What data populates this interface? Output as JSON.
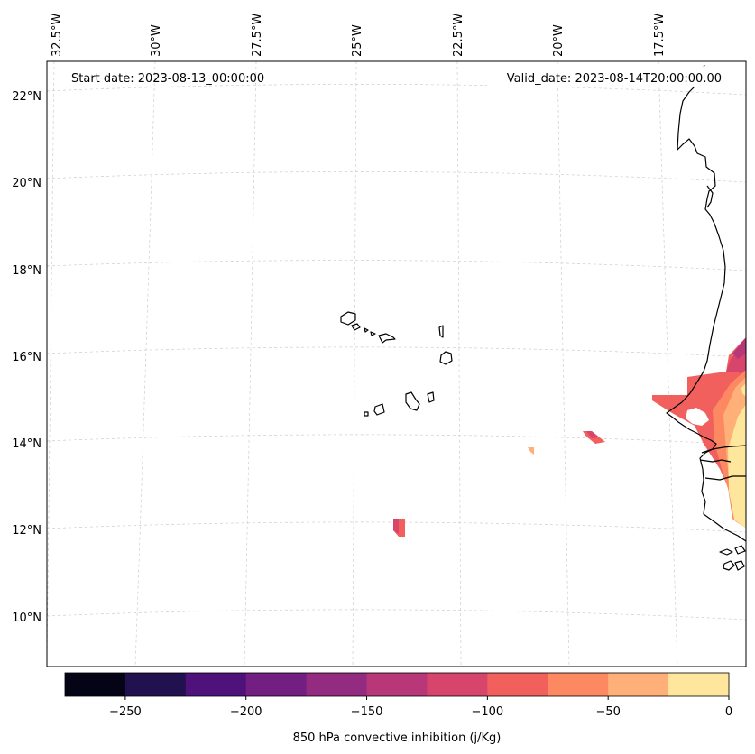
{
  "map": {
    "start_date": "Start date: 2023-08-13_00:00:00",
    "valid_date": "Valid_date: 2023-08-14T20:00:00.00",
    "lon_labels": [
      "32.5°W",
      "30°W",
      "27.5°W",
      "25°W",
      "22.5°W",
      "20°W",
      "17.5°W"
    ],
    "lat_labels": [
      "22°N",
      "20°N",
      "18°N",
      "16°N",
      "14°N",
      "12°N",
      "10°N"
    ],
    "extent": {
      "lon_min": -33.0,
      "lon_max": -16.2,
      "lat_min": 8.9,
      "lat_max": 22.8
    }
  },
  "colorbar": {
    "label": "850 hPa convective inhibition (j/Kg)",
    "bounds": [
      -275,
      -250,
      -225,
      -200,
      -175,
      -150,
      -125,
      -100,
      -75,
      -50,
      -25,
      0
    ],
    "tick_labels": [
      "−250",
      "−200",
      "−150",
      "−100",
      "−50",
      "0"
    ],
    "colors": [
      "#050416",
      "#21114e",
      "#4f127b",
      "#721f81",
      "#932b80",
      "#b73779",
      "#d8456c",
      "#f1605d",
      "#fc8961",
      "#feb078",
      "#fee69d"
    ]
  },
  "colors": {
    "gridline": "#cccccc",
    "coastline": "#000000"
  }
}
